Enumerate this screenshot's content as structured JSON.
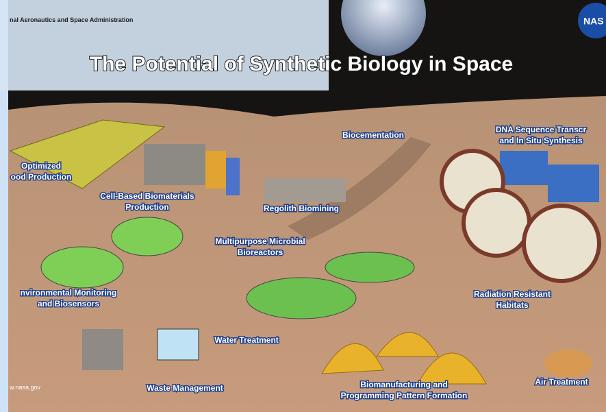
{
  "header": {
    "agency": "nal Aeronautics and Space Administration",
    "logo": "NAS",
    "title": "The Potential of Synthetic Biology in Space"
  },
  "labels": [
    {
      "lines": [
        "Biocementation"
      ]
    },
    {
      "lines": [
        "DNA Sequence Transcr",
        "and In Situ Synthesis"
      ]
    },
    {
      "lines": [
        "Optimized",
        "ood Production"
      ]
    },
    {
      "lines": [
        "Cell-Based Biomaterials",
        "Production"
      ]
    },
    {
      "lines": [
        "Regolith Biomining"
      ]
    },
    {
      "lines": [
        "Multipurpose Microbial",
        "Bioreactors"
      ]
    },
    {
      "lines": [
        "nvironmental Monitoring",
        "and Biosensors"
      ]
    },
    {
      "lines": [
        "Radiation Resistant",
        "Habitats"
      ]
    },
    {
      "lines": [
        "Water Treatment"
      ]
    },
    {
      "lines": [
        "Waste Management"
      ]
    },
    {
      "lines": [
        "Biomanufacturing and",
        "Programming Pattern Formation"
      ]
    },
    {
      "lines": [
        "Air Treatment"
      ]
    }
  ],
  "footer": "w.nasa.gov"
}
